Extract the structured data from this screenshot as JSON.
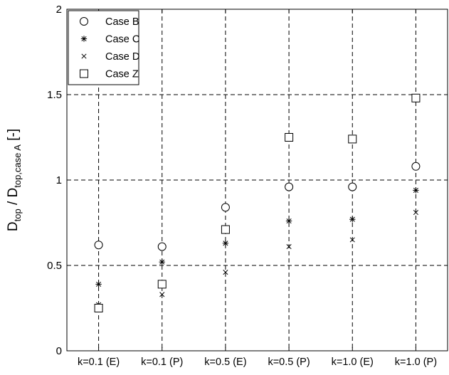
{
  "chart_data": {
    "type": "scatter",
    "categories": [
      "k=0.1 (E)",
      "k=0.1 (P)",
      "k=0.5 (E)",
      "k=0.5 (P)",
      "k=1.0 (E)",
      "k=1.0 (P)"
    ],
    "ylabel": {
      "main": "D",
      "sub1": "top",
      "mid": " / D",
      "sub2": "top,case A",
      "unit": " [-]"
    },
    "ylim": [
      0,
      2
    ],
    "yticks": [
      {
        "value": 0,
        "label": "0"
      },
      {
        "value": 0.5,
        "label": "0.5"
      },
      {
        "value": 1,
        "label": "1"
      },
      {
        "value": 1.5,
        "label": "1.5"
      },
      {
        "value": 2,
        "label": "2"
      }
    ],
    "grid": true,
    "legend_position": "top-left",
    "series": [
      {
        "name": "Case B",
        "marker": "circle",
        "values": [
          0.62,
          0.61,
          0.84,
          0.96,
          0.96,
          1.08
        ]
      },
      {
        "name": "Case C",
        "marker": "asterisk",
        "values": [
          0.39,
          0.52,
          0.63,
          0.76,
          0.77,
          0.94
        ]
      },
      {
        "name": "Case D",
        "marker": "cross",
        "values": [
          0.27,
          0.33,
          0.46,
          0.61,
          0.65,
          0.81
        ]
      },
      {
        "name": "Case Z",
        "marker": "square",
        "values": [
          0.25,
          0.39,
          0.71,
          1.25,
          1.24,
          1.48
        ]
      }
    ]
  }
}
